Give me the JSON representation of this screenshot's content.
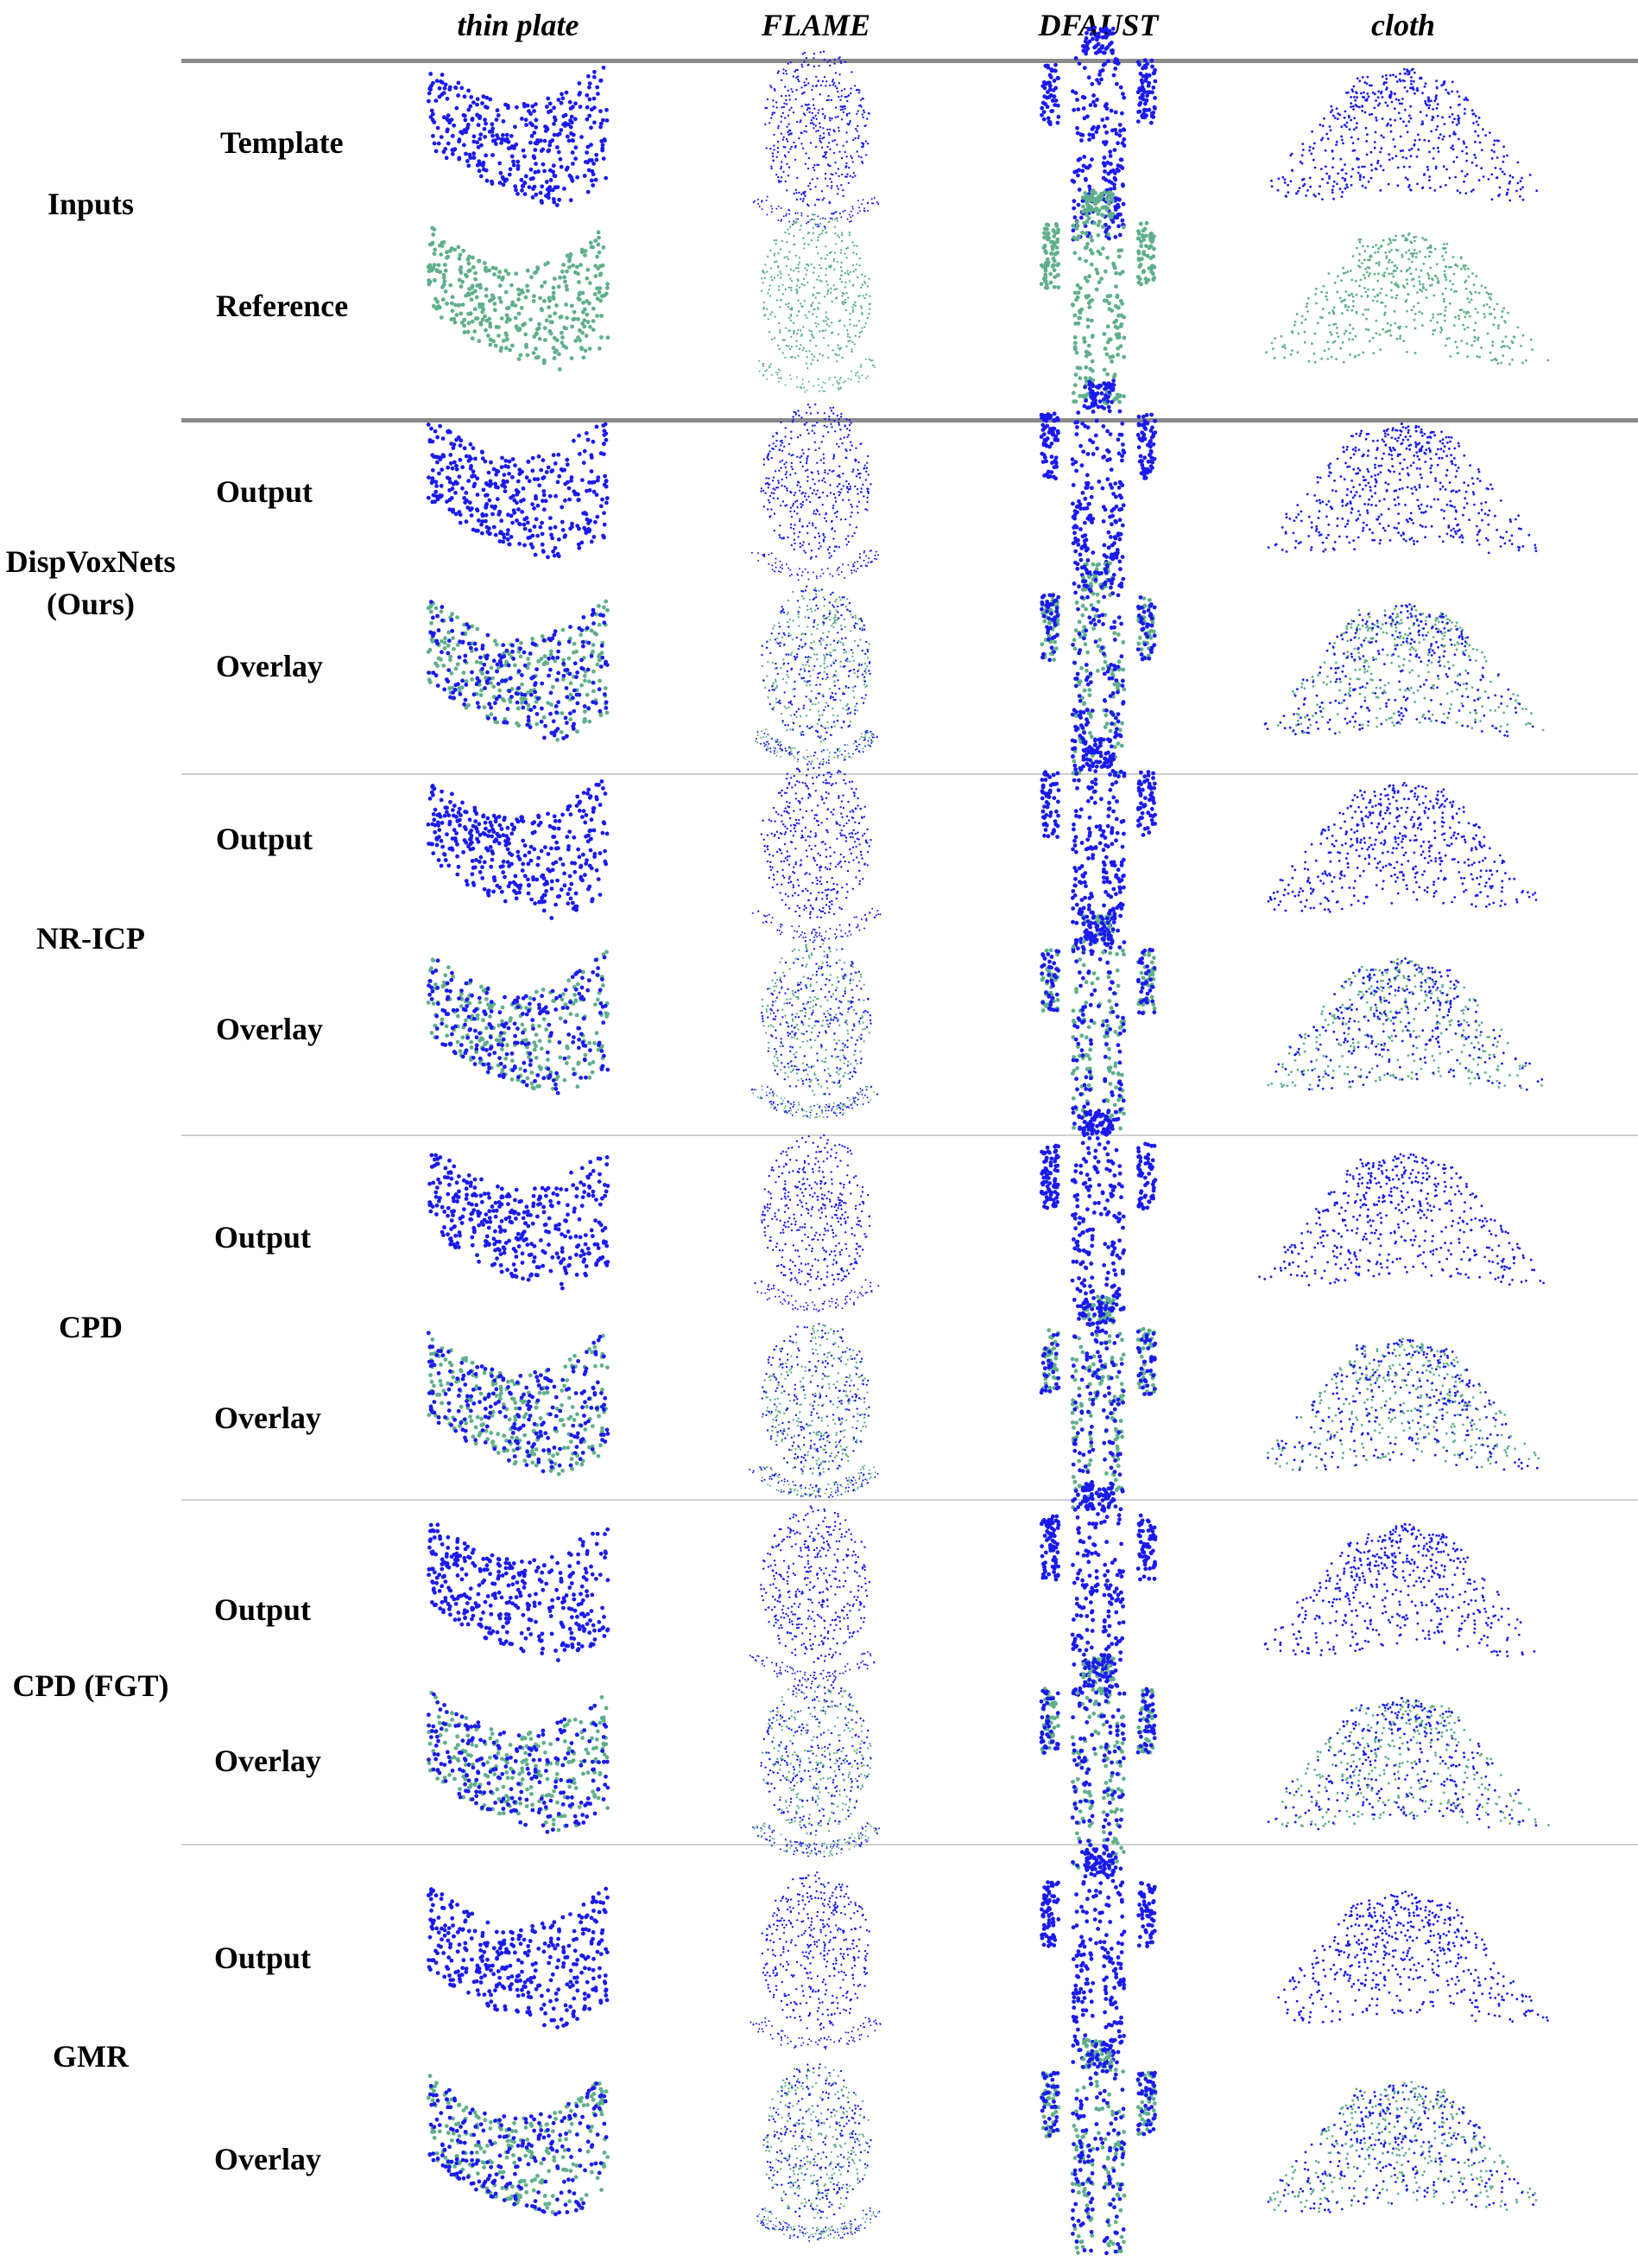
{
  "columns": [
    "thin plate",
    "FLAME",
    "DFAUST",
    "cloth"
  ],
  "colors": {
    "template": "#1a1aee",
    "reference": "#5fb08a"
  },
  "groups": [
    {
      "method": "Inputs",
      "rows": [
        "Template",
        "Reference"
      ]
    },
    {
      "method": "DispVoxNets (Ours)",
      "rows": [
        "Output",
        "Overlay"
      ]
    },
    {
      "method": "NR-ICP",
      "rows": [
        "Output",
        "Overlay"
      ]
    },
    {
      "method": "CPD",
      "rows": [
        "Output",
        "Overlay"
      ]
    },
    {
      "method": "CPD (FGT)",
      "rows": [
        "Output",
        "Overlay"
      ]
    },
    {
      "method": "GMR",
      "rows": [
        "Output",
        "Overlay"
      ]
    }
  ]
}
